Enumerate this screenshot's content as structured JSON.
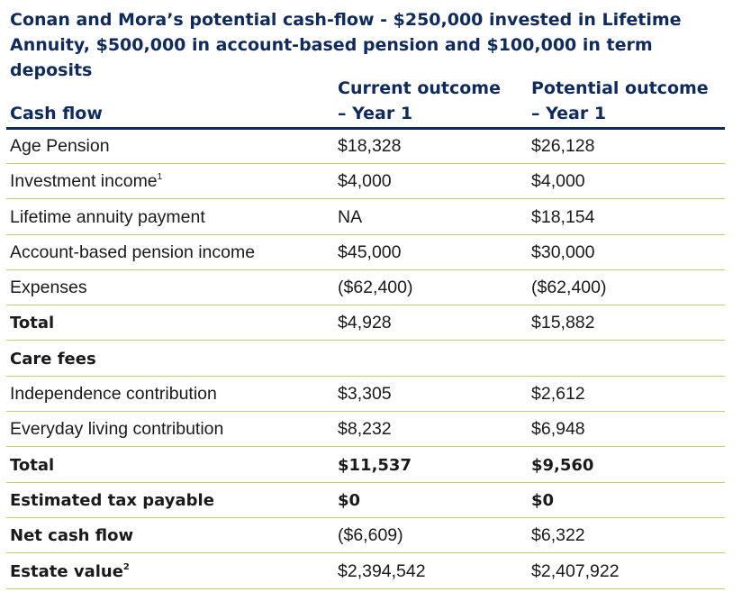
{
  "title": {
    "line1": "Conan and Mora’s potential cash-flow - $250,000 invested in Lifetime",
    "line2": "Annuity, $500,000 in account-based pension and $100,000 in term deposits"
  },
  "header": {
    "label": "Cash flow",
    "col1_line1": "Current outcome",
    "col1_line2": "– Year 1",
    "col2_line1": "Potential outcome",
    "col2_line2": "– Year 1"
  },
  "rows": [
    {
      "label": "Age Pension",
      "sup": "",
      "v1": "$18,328",
      "v2": "$26,128"
    },
    {
      "label": "Investment income",
      "sup": "1",
      "v1": "$4,000",
      "v2": "$4,000"
    },
    {
      "label": "Lifetime annuity payment",
      "sup": "",
      "v1": "NA",
      "v2": "$18,154"
    },
    {
      "label": "Account-based pension income",
      "sup": "",
      "v1": "$45,000",
      "v2": "$30,000"
    },
    {
      "label": "Expenses",
      "sup": "",
      "v1": "($62,400)",
      "v2": "($62,400)"
    },
    {
      "label": "Total",
      "sup": "",
      "v1": "$4,928",
      "v2": "$15,882"
    },
    {
      "label": "Care fees",
      "sup": "",
      "v1": "",
      "v2": ""
    },
    {
      "label": "Independence contribution",
      "sup": "",
      "v1": "$3,305",
      "v2": "$2,612"
    },
    {
      "label": "Everyday living contribution",
      "sup": "",
      "v1": "$8,232",
      "v2": "$6,948"
    },
    {
      "label": "Total",
      "sup": "",
      "v1": "$11,537",
      "v2": "$9,560"
    },
    {
      "label": "Estimated tax payable",
      "sup": "",
      "v1": "$0",
      "v2": "$0"
    },
    {
      "label": "Net cash flow",
      "sup": "",
      "v1": "($6,609)",
      "v2": "$6,322"
    },
    {
      "label": "Estate value",
      "sup": "2",
      "v1": "$2,394,542",
      "v2": "$2,407,922"
    }
  ]
}
